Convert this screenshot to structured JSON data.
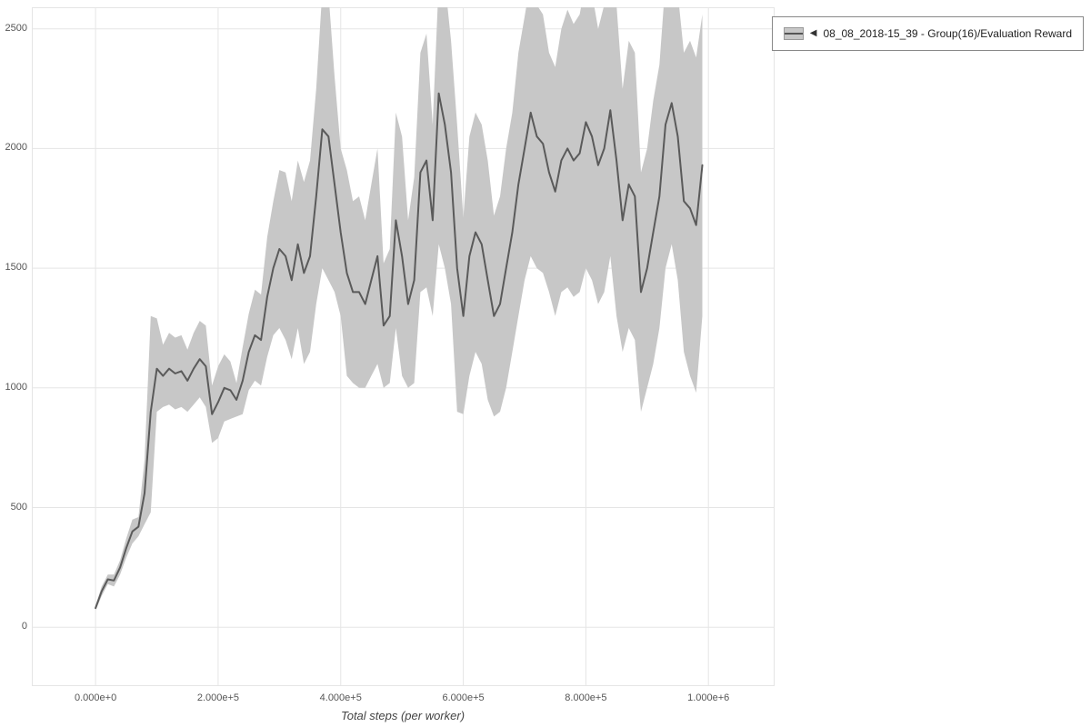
{
  "legend": {
    "collapse_icon": "◀",
    "series_label": "08_08_2018-15_39 - Group(16)/Evaluation Reward"
  },
  "chart_data": {
    "type": "line",
    "title": "",
    "xlabel": "Total steps (per worker)",
    "ylabel": "",
    "xlim": [
      -104000,
      1108000
    ],
    "ylim": [
      -246,
      2590
    ],
    "grid": true,
    "legend_position": "top-right",
    "grid_color": "#e5e5e5",
    "line_color": "#5a5a5a",
    "band_color": "#c7c7c7",
    "x_ticks": [
      {
        "label": "0.000e+0",
        "value": 0
      },
      {
        "label": "2.000e+5",
        "value": 200000
      },
      {
        "label": "4.000e+5",
        "value": 400000
      },
      {
        "label": "6.000e+5",
        "value": 600000
      },
      {
        "label": "8.000e+5",
        "value": 800000
      },
      {
        "label": "1.000e+6",
        "value": 1000000
      }
    ],
    "y_ticks": [
      {
        "label": "0",
        "value": 0
      },
      {
        "label": "500",
        "value": 500
      },
      {
        "label": "1000",
        "value": 1000
      },
      {
        "label": "1500",
        "value": 1500
      },
      {
        "label": "2000",
        "value": 2000
      },
      {
        "label": "2500",
        "value": 2500
      }
    ],
    "series": [
      {
        "name": "08_08_2018-15_39 - Group(16)/Evaluation Reward",
        "x": [
          0,
          10000,
          20000,
          30000,
          40000,
          50000,
          60000,
          70000,
          80000,
          90000,
          100000,
          110000,
          120000,
          130000,
          140000,
          150000,
          160000,
          170000,
          180000,
          190000,
          200000,
          210000,
          220000,
          230000,
          240000,
          250000,
          260000,
          270000,
          280000,
          290000,
          300000,
          310000,
          320000,
          330000,
          340000,
          350000,
          360000,
          370000,
          380000,
          390000,
          400000,
          410000,
          420000,
          430000,
          440000,
          450000,
          460000,
          470000,
          480000,
          490000,
          500000,
          510000,
          520000,
          530000,
          540000,
          550000,
          560000,
          570000,
          580000,
          590000,
          600000,
          610000,
          620000,
          630000,
          640000,
          650000,
          660000,
          670000,
          680000,
          690000,
          700000,
          710000,
          720000,
          730000,
          740000,
          750000,
          760000,
          770000,
          780000,
          790000,
          800000,
          810000,
          820000,
          830000,
          840000,
          850000,
          860000,
          870000,
          880000,
          890000,
          900000,
          910000,
          920000,
          930000,
          940000,
          950000,
          960000,
          970000,
          980000,
          990000
        ],
        "mean": [
          80,
          150,
          200,
          195,
          250,
          330,
          400,
          420,
          560,
          900,
          1080,
          1050,
          1080,
          1060,
          1070,
          1030,
          1080,
          1120,
          1090,
          890,
          940,
          1000,
          990,
          950,
          1030,
          1150,
          1220,
          1200,
          1380,
          1500,
          1580,
          1550,
          1450,
          1600,
          1480,
          1550,
          1800,
          2080,
          2050,
          1850,
          1650,
          1480,
          1400,
          1400,
          1350,
          1450,
          1550,
          1260,
          1300,
          1700,
          1550,
          1350,
          1450,
          1900,
          1950,
          1700,
          2230,
          2100,
          1900,
          1500,
          1300,
          1550,
          1650,
          1600,
          1450,
          1300,
          1350,
          1500,
          1650,
          1850,
          2000,
          2150,
          2050,
          2020,
          1900,
          1820,
          1950,
          2000,
          1950,
          1980,
          2110,
          2050,
          1930,
          2000,
          2160,
          1950,
          1700,
          1850,
          1800,
          1400,
          1500,
          1650,
          1800,
          2100,
          2190,
          2050,
          1780,
          1750,
          1680,
          1930
        ],
        "lower": [
          70,
          130,
          180,
          170,
          220,
          290,
          350,
          380,
          430,
          480,
          900,
          920,
          930,
          910,
          920,
          900,
          930,
          960,
          920,
          770,
          790,
          860,
          870,
          880,
          890,
          990,
          1030,
          1010,
          1130,
          1220,
          1250,
          1200,
          1120,
          1250,
          1100,
          1150,
          1350,
          1500,
          1450,
          1400,
          1300,
          1050,
          1020,
          1000,
          1000,
          1050,
          1100,
          1000,
          1020,
          1250,
          1050,
          1000,
          1020,
          1400,
          1420,
          1300,
          1600,
          1500,
          1350,
          900,
          890,
          1050,
          1150,
          1100,
          950,
          880,
          900,
          1000,
          1150,
          1300,
          1450,
          1550,
          1500,
          1480,
          1400,
          1300,
          1400,
          1420,
          1380,
          1400,
          1500,
          1450,
          1350,
          1400,
          1550,
          1300,
          1150,
          1250,
          1200,
          900,
          1000,
          1100,
          1250,
          1500,
          1600,
          1450,
          1150,
          1050,
          980,
          1300
        ],
        "upper": [
          90,
          170,
          220,
          220,
          280,
          370,
          450,
          460,
          700,
          1300,
          1290,
          1180,
          1230,
          1210,
          1220,
          1160,
          1230,
          1280,
          1260,
          1010,
          1090,
          1140,
          1110,
          1020,
          1170,
          1310,
          1410,
          1390,
          1630,
          1780,
          1910,
          1900,
          1780,
          1950,
          1860,
          1950,
          2250,
          2660,
          2650,
          2300,
          2000,
          1910,
          1780,
          1800,
          1700,
          1850,
          2000,
          1520,
          1580,
          2150,
          2050,
          1700,
          1880,
          2400,
          2480,
          2100,
          2700,
          2700,
          2450,
          2100,
          1710,
          2050,
          2150,
          2100,
          1950,
          1720,
          1800,
          2000,
          2150,
          2400,
          2550,
          2700,
          2600,
          2560,
          2400,
          2340,
          2500,
          2580,
          2520,
          2560,
          2700,
          2650,
          2500,
          2600,
          2700,
          2600,
          2250,
          2450,
          2400,
          1900,
          2000,
          2200,
          2350,
          2700,
          2700,
          2650,
          2400,
          2450,
          2380,
          2560
        ]
      }
    ]
  }
}
